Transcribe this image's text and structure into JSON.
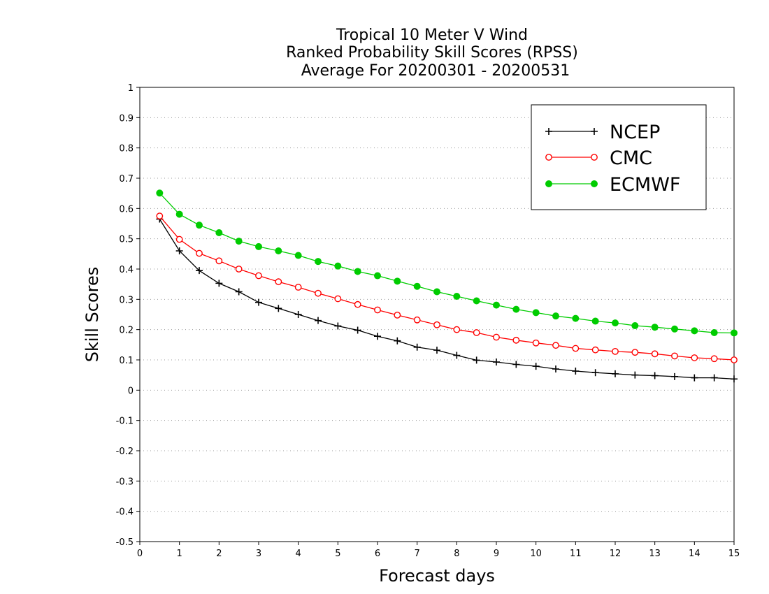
{
  "chart_data": {
    "type": "line",
    "title": [
      "Tropical 10 Meter V Wind",
      "Ranked Probability Skill Scores (RPSS)",
      "Average For 20200301 - 20200531"
    ],
    "xlabel": "Forecast days",
    "ylabel": "Skill Scores",
    "xlim": [
      0,
      15
    ],
    "ylim": [
      -0.5,
      1
    ],
    "xticks": [
      0,
      1,
      2,
      3,
      4,
      5,
      6,
      7,
      8,
      9,
      10,
      11,
      12,
      13,
      14,
      15
    ],
    "yticks": [
      -0.5,
      -0.4,
      -0.3,
      -0.2,
      -0.1,
      0,
      0.1,
      0.2,
      0.3,
      0.4,
      0.5,
      0.6,
      0.7,
      0.8,
      0.9,
      1
    ],
    "ytick_labels": [
      "-0.5",
      "-0.4",
      "-0.3",
      "-0.2",
      "-0.1",
      "0",
      "0.1",
      "0.2",
      "0.3",
      "0.4",
      "0.5",
      "0.6",
      "0.7",
      "0.8",
      "0.9",
      "1"
    ],
    "grid": "horizontal dotted",
    "legend_position": "top-right",
    "x": [
      0.5,
      1,
      1.5,
      2,
      2.5,
      3,
      3.5,
      4,
      4.5,
      5,
      5.5,
      6,
      6.5,
      7,
      7.5,
      8,
      8.5,
      9,
      9.5,
      10,
      10.5,
      11,
      11.5,
      12,
      12.5,
      13,
      13.5,
      14,
      14.5,
      15
    ],
    "series": [
      {
        "name": "NCEP",
        "color": "#000000",
        "marker": "plus",
        "values": [
          0.565,
          0.46,
          0.395,
          0.353,
          0.325,
          0.29,
          0.27,
          0.25,
          0.23,
          0.212,
          0.198,
          0.178,
          0.163,
          0.142,
          0.132,
          0.115,
          0.099,
          0.093,
          0.085,
          0.079,
          0.07,
          0.063,
          0.058,
          0.054,
          0.05,
          0.048,
          0.045,
          0.041,
          0.041,
          0.037
        ]
      },
      {
        "name": "CMC",
        "color": "#ff0000",
        "marker": "open-circle",
        "values": [
          0.575,
          0.498,
          0.452,
          0.427,
          0.4,
          0.378,
          0.358,
          0.34,
          0.32,
          0.302,
          0.283,
          0.265,
          0.248,
          0.232,
          0.216,
          0.2,
          0.19,
          0.175,
          0.165,
          0.156,
          0.148,
          0.138,
          0.133,
          0.128,
          0.125,
          0.12,
          0.113,
          0.107,
          0.104,
          0.1
        ]
      },
      {
        "name": "ECMWF",
        "color": "#00cc00",
        "marker": "filled-circle",
        "values": [
          0.651,
          0.581,
          0.545,
          0.52,
          0.492,
          0.474,
          0.46,
          0.445,
          0.425,
          0.41,
          0.392,
          0.378,
          0.36,
          0.343,
          0.325,
          0.31,
          0.295,
          0.281,
          0.267,
          0.256,
          0.245,
          0.237,
          0.228,
          0.222,
          0.213,
          0.208,
          0.202,
          0.196,
          0.19,
          0.189
        ]
      }
    ]
  }
}
